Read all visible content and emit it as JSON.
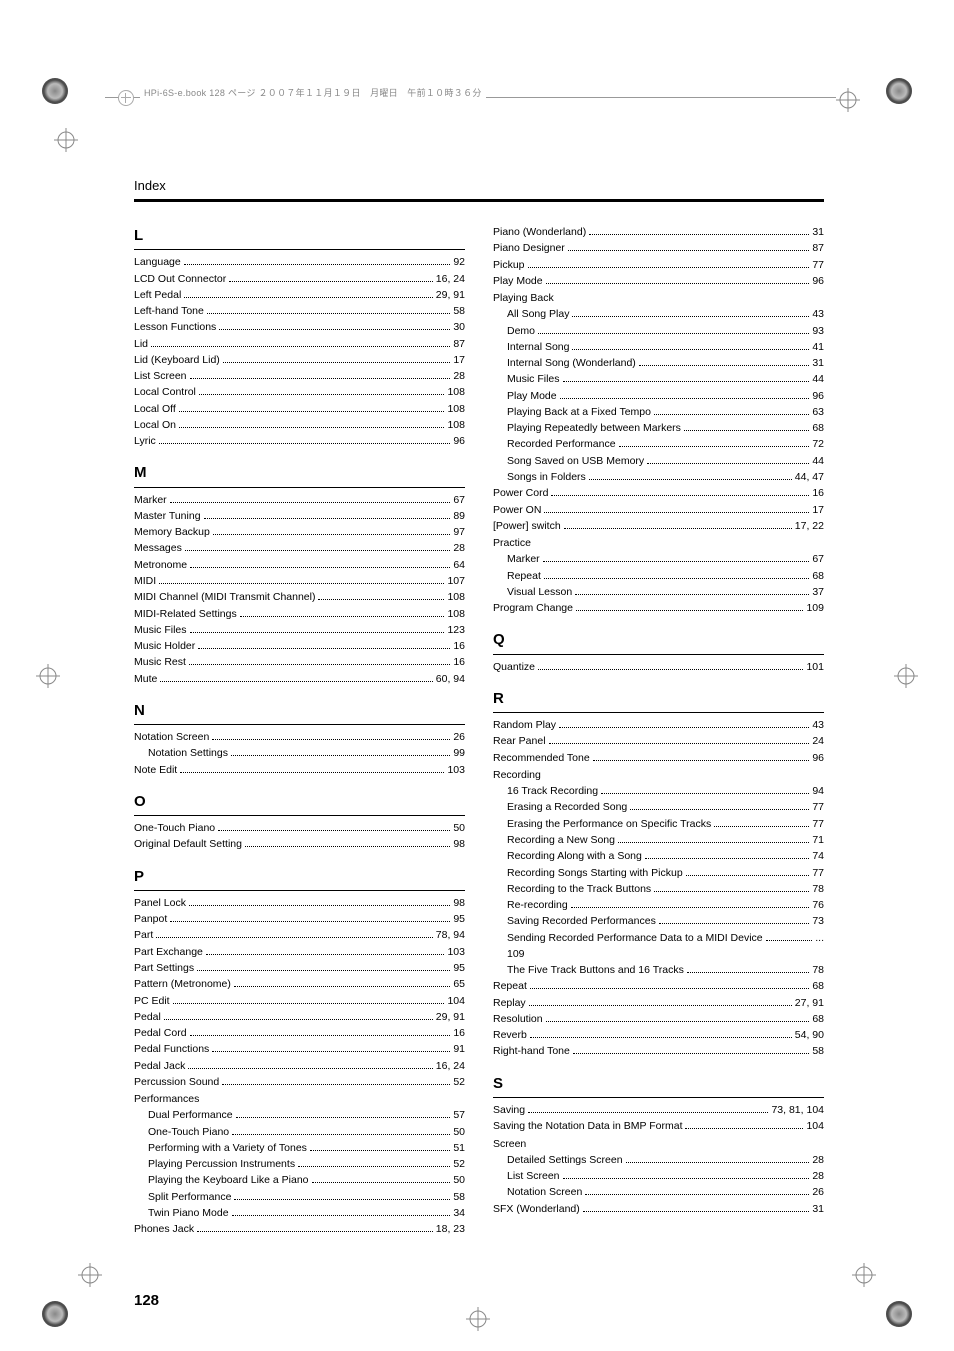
{
  "header_text": "HPi-6S-e.book  128 ページ  ２００７年１１月１９日　月曜日　午前１０時３６分",
  "running_head": "Index",
  "page_number": "128",
  "left": [
    {
      "type": "letter",
      "text": "L"
    },
    {
      "type": "entry",
      "label": "Language",
      "page": "92"
    },
    {
      "type": "entry",
      "label": "LCD Out Connector",
      "page": "16, 24"
    },
    {
      "type": "entry",
      "label": "Left Pedal",
      "page": "29, 91"
    },
    {
      "type": "entry",
      "label": "Left-hand Tone",
      "page": "58"
    },
    {
      "type": "entry",
      "label": "Lesson Functions",
      "page": "30"
    },
    {
      "type": "entry",
      "label": "Lid",
      "page": "87"
    },
    {
      "type": "entry",
      "label": "Lid (Keyboard Lid)",
      "page": "17"
    },
    {
      "type": "entry",
      "label": "List Screen",
      "page": "28"
    },
    {
      "type": "entry",
      "label": "Local Control",
      "page": "108"
    },
    {
      "type": "entry",
      "label": "Local Off",
      "page": "108"
    },
    {
      "type": "entry",
      "label": "Local On",
      "page": "108"
    },
    {
      "type": "entry",
      "label": "Lyric",
      "page": "96"
    },
    {
      "type": "letter",
      "text": "M"
    },
    {
      "type": "entry",
      "label": "Marker",
      "page": "67"
    },
    {
      "type": "entry",
      "label": "Master Tuning",
      "page": "89"
    },
    {
      "type": "entry",
      "label": "Memory Backup",
      "page": "97"
    },
    {
      "type": "entry",
      "label": "Messages",
      "page": "28"
    },
    {
      "type": "entry",
      "label": "Metronome",
      "page": "64"
    },
    {
      "type": "entry",
      "label": "MIDI",
      "page": "107"
    },
    {
      "type": "entry",
      "label": "MIDI Channel (MIDI Transmit Channel)",
      "page": "108"
    },
    {
      "type": "entry",
      "label": "MIDI-Related Settings",
      "page": "108"
    },
    {
      "type": "entry",
      "label": "Music Files",
      "page": "123"
    },
    {
      "type": "entry",
      "label": "Music Holder",
      "page": "16"
    },
    {
      "type": "entry",
      "label": "Music Rest",
      "page": "16"
    },
    {
      "type": "entry",
      "label": "Mute",
      "page": "60, 94"
    },
    {
      "type": "letter",
      "text": "N"
    },
    {
      "type": "entry",
      "label": "Notation Screen",
      "page": "26"
    },
    {
      "type": "sub",
      "label": "Notation Settings",
      "page": "99"
    },
    {
      "type": "entry",
      "label": "Note Edit",
      "page": "103"
    },
    {
      "type": "letter",
      "text": "O"
    },
    {
      "type": "entry",
      "label": "One-Touch Piano",
      "page": "50"
    },
    {
      "type": "entry",
      "label": "Original Default Setting",
      "page": "98"
    },
    {
      "type": "letter",
      "text": "P"
    },
    {
      "type": "entry",
      "label": "Panel Lock",
      "page": "98"
    },
    {
      "type": "entry",
      "label": "Panpot",
      "page": "95"
    },
    {
      "type": "entry",
      "label": "Part",
      "page": "78, 94"
    },
    {
      "type": "entry",
      "label": "Part Exchange",
      "page": "103"
    },
    {
      "type": "entry",
      "label": "Part Settings",
      "page": "95"
    },
    {
      "type": "entry",
      "label": "Pattern (Metronome)",
      "page": "65"
    },
    {
      "type": "entry",
      "label": "PC Edit",
      "page": "104"
    },
    {
      "type": "entry",
      "label": "Pedal",
      "page": "29, 91"
    },
    {
      "type": "entry",
      "label": "Pedal Cord",
      "page": "16"
    },
    {
      "type": "entry",
      "label": "Pedal Functions",
      "page": "91"
    },
    {
      "type": "entry",
      "label": "Pedal Jack",
      "page": "16, 24"
    },
    {
      "type": "entry",
      "label": "Percussion Sound",
      "page": "52"
    },
    {
      "type": "head",
      "label": "Performances"
    },
    {
      "type": "sub",
      "label": "Dual Performance",
      "page": "57"
    },
    {
      "type": "sub",
      "label": "One-Touch Piano",
      "page": "50"
    },
    {
      "type": "sub",
      "label": "Performing with a Variety of Tones",
      "page": "51"
    },
    {
      "type": "sub",
      "label": "Playing Percussion Instruments",
      "page": "52"
    },
    {
      "type": "sub",
      "label": "Playing the Keyboard Like a Piano",
      "page": "50"
    },
    {
      "type": "sub",
      "label": "Split Performance",
      "page": "58"
    },
    {
      "type": "sub",
      "label": "Twin Piano Mode",
      "page": "34"
    },
    {
      "type": "entry",
      "label": "Phones Jack",
      "page": "18, 23"
    }
  ],
  "right": [
    {
      "type": "entry",
      "label": "Piano (Wonderland)",
      "page": "31"
    },
    {
      "type": "entry",
      "label": "Piano Designer",
      "page": "87"
    },
    {
      "type": "entry",
      "label": "Pickup",
      "page": "77"
    },
    {
      "type": "entry",
      "label": "Play Mode",
      "page": "96"
    },
    {
      "type": "head",
      "label": "Playing Back"
    },
    {
      "type": "sub",
      "label": "All Song Play",
      "page": "43"
    },
    {
      "type": "sub",
      "label": "Demo",
      "page": "93"
    },
    {
      "type": "sub",
      "label": "Internal Song",
      "page": "41"
    },
    {
      "type": "sub",
      "label": "Internal Song (Wonderland)",
      "page": "31"
    },
    {
      "type": "sub",
      "label": "Music Files",
      "page": "44"
    },
    {
      "type": "sub",
      "label": "Play Mode",
      "page": "96"
    },
    {
      "type": "sub",
      "label": "Playing Back at a Fixed Tempo",
      "page": "63"
    },
    {
      "type": "sub",
      "label": "Playing Repeatedly between Markers",
      "page": "68"
    },
    {
      "type": "sub",
      "label": "Recorded Performance",
      "page": "72"
    },
    {
      "type": "sub",
      "label": "Song Saved on USB Memory",
      "page": "44"
    },
    {
      "type": "sub",
      "label": "Songs in Folders",
      "page": "44, 47"
    },
    {
      "type": "entry",
      "label": "Power Cord",
      "page": "16"
    },
    {
      "type": "entry",
      "label": "Power ON",
      "page": "17"
    },
    {
      "type": "entry",
      "label": "[Power] switch",
      "page": "17, 22"
    },
    {
      "type": "head",
      "label": "Practice"
    },
    {
      "type": "sub",
      "label": "Marker",
      "page": "67"
    },
    {
      "type": "sub",
      "label": "Repeat",
      "page": "68"
    },
    {
      "type": "sub",
      "label": "Visual Lesson",
      "page": "37"
    },
    {
      "type": "entry",
      "label": "Program Change",
      "page": "109"
    },
    {
      "type": "letter",
      "text": "Q"
    },
    {
      "type": "entry",
      "label": "Quantize",
      "page": "101"
    },
    {
      "type": "letter",
      "text": "R"
    },
    {
      "type": "entry",
      "label": "Random Play",
      "page": "43"
    },
    {
      "type": "entry",
      "label": "Rear Panel",
      "page": "24"
    },
    {
      "type": "entry",
      "label": "Recommended Tone",
      "page": "96"
    },
    {
      "type": "head",
      "label": "Recording"
    },
    {
      "type": "sub",
      "label": "16 Track Recording",
      "page": "94"
    },
    {
      "type": "sub",
      "label": "Erasing a Recorded Song",
      "page": "77"
    },
    {
      "type": "sub",
      "label": "Erasing the Performance on Specific Tracks",
      "page": "77"
    },
    {
      "type": "sub",
      "label": "Recording a New Song",
      "page": "71"
    },
    {
      "type": "sub",
      "label": "Recording Along with a Song",
      "page": "74"
    },
    {
      "type": "sub",
      "label": "Recording Songs Starting with Pickup",
      "page": "77"
    },
    {
      "type": "sub",
      "label": "Recording to the Track Buttons",
      "page": "78"
    },
    {
      "type": "sub",
      "label": "Re-recording",
      "page": "76"
    },
    {
      "type": "sub",
      "label": "Saving Recorded Performances",
      "page": "73"
    },
    {
      "type": "sub",
      "label": "Sending Recorded Performance Data to a MIDI Device",
      "page": "..."
    },
    {
      "type": "orphan",
      "label": "109"
    },
    {
      "type": "sub",
      "label": "The Five Track Buttons and 16 Tracks",
      "page": "78"
    },
    {
      "type": "entry",
      "label": "Repeat",
      "page": "68"
    },
    {
      "type": "entry",
      "label": "Replay",
      "page": "27, 91"
    },
    {
      "type": "entry",
      "label": "Resolution",
      "page": "68"
    },
    {
      "type": "entry",
      "label": "Reverb",
      "page": "54, 90"
    },
    {
      "type": "entry",
      "label": "Right-hand Tone",
      "page": "58"
    },
    {
      "type": "letter",
      "text": "S"
    },
    {
      "type": "entry",
      "label": "Saving",
      "page": "73, 81, 104"
    },
    {
      "type": "entry",
      "label": "Saving the Notation Data in BMP Format",
      "page": "104"
    },
    {
      "type": "head",
      "label": "Screen"
    },
    {
      "type": "sub",
      "label": "Detailed Settings Screen",
      "page": "28"
    },
    {
      "type": "sub",
      "label": "List Screen",
      "page": "28"
    },
    {
      "type": "sub",
      "label": "Notation Screen",
      "page": "26"
    },
    {
      "type": "entry",
      "label": "SFX (Wonderland)",
      "page": "31"
    }
  ]
}
